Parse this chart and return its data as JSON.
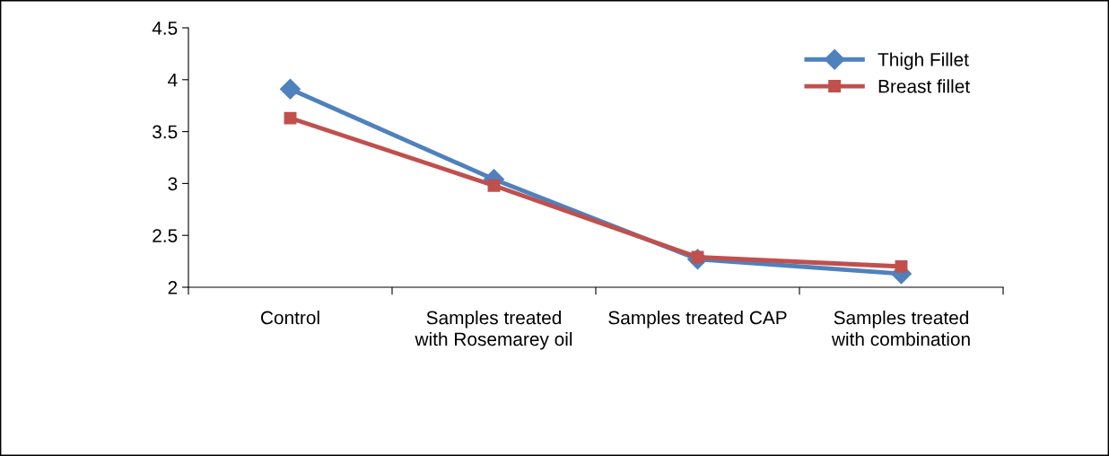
{
  "chart_data": {
    "type": "line",
    "categories": [
      "Control",
      "Samples treated\nwith Rosemarey oil",
      "Samples treated CAP",
      "Samples treated\nwith combination"
    ],
    "series": [
      {
        "name": "Thigh Fillet",
        "color": "#4f81bd",
        "marker": "diamond",
        "values": [
          3.91,
          3.04,
          2.27,
          2.13
        ]
      },
      {
        "name": "Breast fillet",
        "color": "#c0504d",
        "marker": "square",
        "values": [
          3.63,
          2.98,
          2.29,
          2.2
        ]
      }
    ],
    "ylim": [
      2,
      4.5
    ],
    "yticks": [
      2,
      2.5,
      3,
      3.5,
      4,
      4.5
    ],
    "grid": false,
    "legend": "top right",
    "line_style": "solid"
  }
}
